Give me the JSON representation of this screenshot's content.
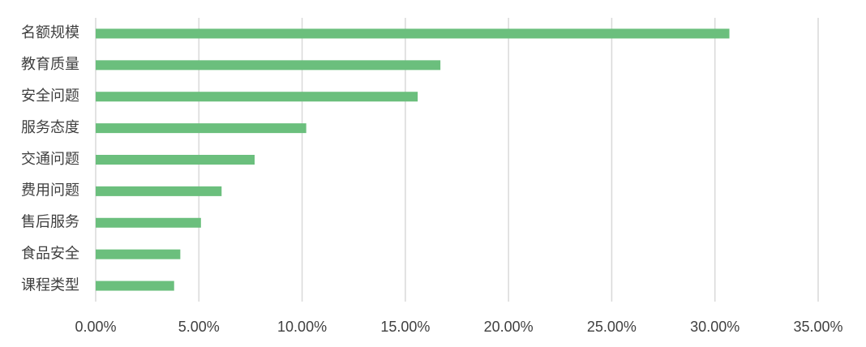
{
  "chart_data": {
    "type": "bar",
    "orientation": "horizontal",
    "categories": [
      "名额规模",
      "教育质量",
      "安全问题",
      "服务态度",
      "交通问题",
      "费用问题",
      "售后服务",
      "食品安全",
      "课程类型"
    ],
    "values": [
      30.7,
      16.7,
      15.6,
      10.2,
      7.7,
      6.1,
      5.1,
      4.1,
      3.8
    ],
    "color": "#6bbf7d",
    "xlim": [
      0,
      35
    ],
    "xticks": [
      {
        "value": 0,
        "label": "0.00%"
      },
      {
        "value": 5,
        "label": "5.00%"
      },
      {
        "value": 10,
        "label": "10.00%"
      },
      {
        "value": 15,
        "label": "15.00%"
      },
      {
        "value": 20,
        "label": "20.00%"
      },
      {
        "value": 25,
        "label": "25.00%"
      },
      {
        "value": 30,
        "label": "30.00%"
      },
      {
        "value": 35,
        "label": "35.00%"
      }
    ],
    "grid": true
  }
}
